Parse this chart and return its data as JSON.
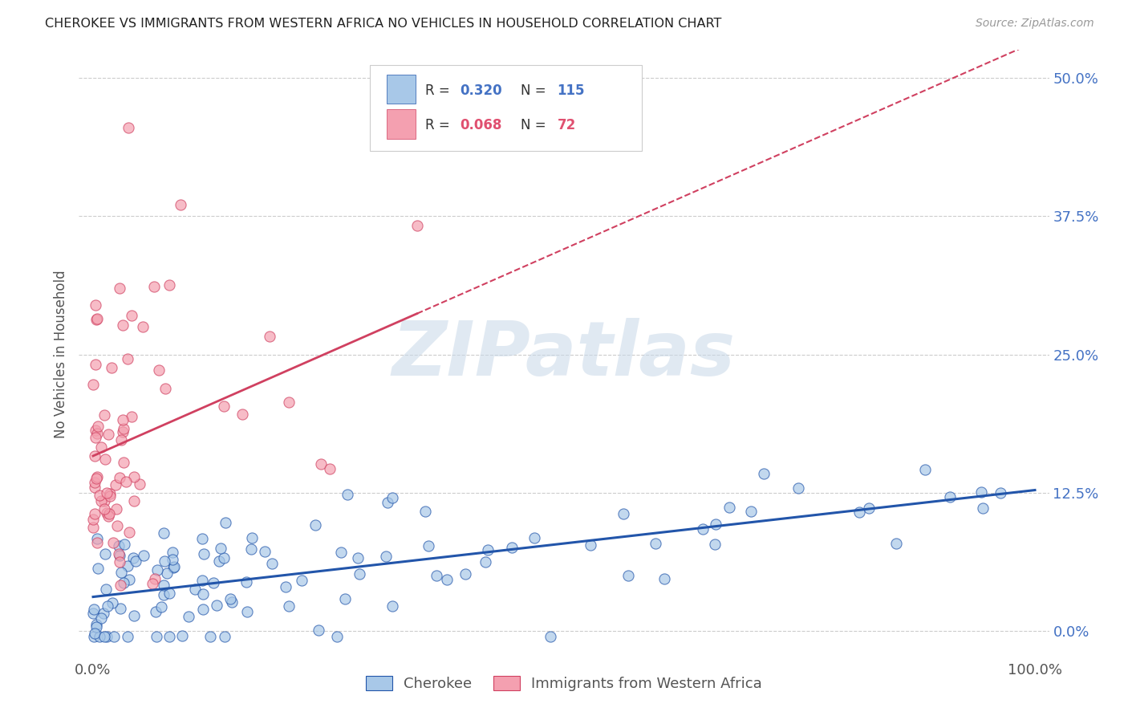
{
  "title": "CHEROKEE VS IMMIGRANTS FROM WESTERN AFRICA NO VEHICLES IN HOUSEHOLD CORRELATION CHART",
  "source": "Source: ZipAtlas.com",
  "ylabel": "No Vehicles in Household",
  "xlim": [
    -0.015,
    1.015
  ],
  "ylim": [
    -0.025,
    0.525
  ],
  "ytick_values": [
    0.0,
    0.125,
    0.25,
    0.375,
    0.5
  ],
  "ytick_labels": [
    "0.0%",
    "12.5%",
    "25.0%",
    "37.5%",
    "50.0%"
  ],
  "xtick_values": [
    0.0,
    1.0
  ],
  "xtick_labels": [
    "0.0%",
    "100.0%"
  ],
  "watermark": "ZIPatlas",
  "legend_label_blue": "Cherokee",
  "legend_label_pink": "Immigrants from Western Africa",
  "blue_color": "#a8c8e8",
  "blue_line_color": "#2255aa",
  "pink_color": "#f4a0b0",
  "pink_line_color": "#d04060",
  "background_color": "#ffffff",
  "grid_color": "#cccccc",
  "title_color": "#222222",
  "source_color": "#999999",
  "ytick_color": "#4472c4",
  "xtick_color": "#555555"
}
